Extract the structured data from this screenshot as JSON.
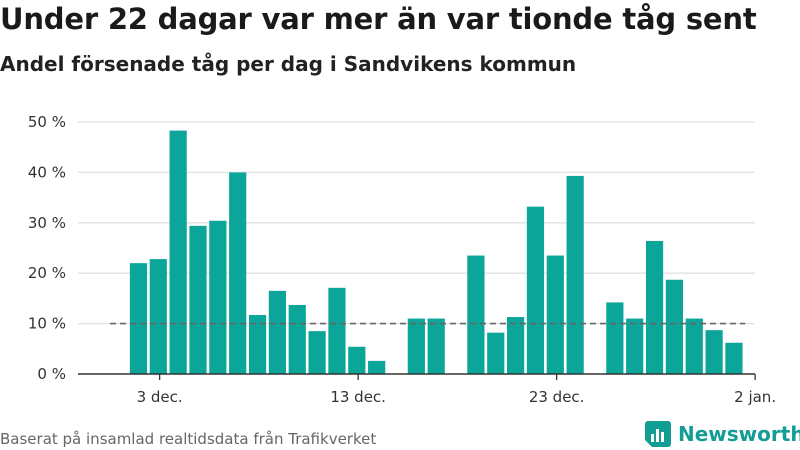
{
  "title": "Under 22 dagar var mer än var tionde tåg sent",
  "subtitle": "Andel försenade tåg per dag i Sandvikens kommun",
  "source": "Baserat på insamlad realtidsdata från Trafikverket",
  "brand": "Newsworthy",
  "colors": {
    "bar": "#0ca59a",
    "reference_line": "#666666",
    "brand": "#119d93"
  },
  "chart_data": {
    "type": "bar",
    "title": "Under 22 dagar var mer än var tionde tåg sent",
    "subtitle": "Andel försenade tåg per dag i Sandvikens kommun",
    "x_axis": {
      "start": "2023-12-01",
      "end": "2024-01-01",
      "ticks": [
        {
          "date": "2023-12-03",
          "label": "3 dec."
        },
        {
          "date": "2023-12-13",
          "label": "13 dec."
        },
        {
          "date": "2023-12-23",
          "label": "23 dec."
        },
        {
          "date": "2024-01-02",
          "label": "2 jan."
        }
      ]
    },
    "y_axis": {
      "ylim": [
        0,
        50
      ],
      "ticks": [
        0,
        10,
        20,
        30,
        40,
        50
      ],
      "tick_labels": [
        "0 %",
        "10 %",
        "20 %",
        "30 %",
        "40 %",
        "50 %"
      ]
    },
    "grid": true,
    "reference_line": {
      "value": 10,
      "style": "dashed"
    },
    "series": [
      {
        "values": [
          {
            "date": "2023-12-02",
            "value": 22
          },
          {
            "date": "2023-12-03",
            "value": 22.8
          },
          {
            "date": "2023-12-04",
            "value": 48.3
          },
          {
            "date": "2023-12-05",
            "value": 29.4
          },
          {
            "date": "2023-12-06",
            "value": 30.4
          },
          {
            "date": "2023-12-07",
            "value": 40
          },
          {
            "date": "2023-12-08",
            "value": 11.7
          },
          {
            "date": "2023-12-09",
            "value": 16.5
          },
          {
            "date": "2023-12-10",
            "value": 13.7
          },
          {
            "date": "2023-12-11",
            "value": 8.5
          },
          {
            "date": "2023-12-12",
            "value": 17.1
          },
          {
            "date": "2023-12-13",
            "value": 5.4
          },
          {
            "date": "2023-12-14",
            "value": 2.6
          },
          {
            "date": "2023-12-16",
            "value": 11
          },
          {
            "date": "2023-12-17",
            "value": 11
          },
          {
            "date": "2023-12-19",
            "value": 23.5
          },
          {
            "date": "2023-12-20",
            "value": 8.2
          },
          {
            "date": "2023-12-21",
            "value": 11.3
          },
          {
            "date": "2023-12-22",
            "value": 33.2
          },
          {
            "date": "2023-12-23",
            "value": 23.5
          },
          {
            "date": "2023-12-24",
            "value": 39.3
          },
          {
            "date": "2023-12-26",
            "value": 14.2
          },
          {
            "date": "2023-12-27",
            "value": 11
          },
          {
            "date": "2023-12-28",
            "value": 26.4
          },
          {
            "date": "2023-12-29",
            "value": 18.7
          },
          {
            "date": "2023-12-30",
            "value": 11
          },
          {
            "date": "2023-12-31",
            "value": 8.7
          },
          {
            "date": "2024-01-01",
            "value": 6.2
          }
        ]
      }
    ]
  }
}
